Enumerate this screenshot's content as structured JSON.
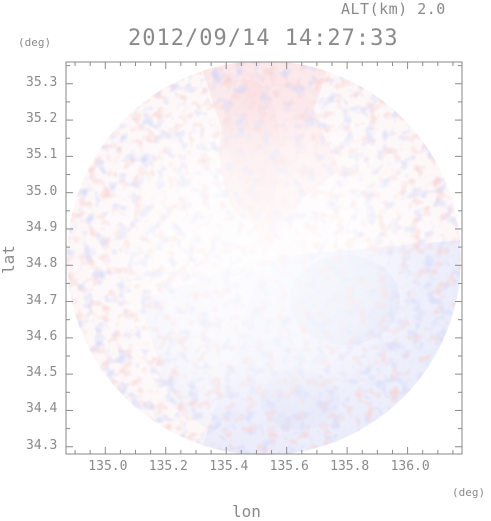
{
  "header": {
    "altitude_label": "ALT(km) 2.0",
    "timestamp": "2012/09/14 14:27:33"
  },
  "axes": {
    "x_unit": "(deg)",
    "y_unit": "(deg)",
    "x_label": "lon",
    "y_label": "lat",
    "x_ticks": [
      "135.0",
      "135.2",
      "135.4",
      "135.6",
      "135.8",
      "136.0"
    ],
    "y_ticks": [
      "35.3",
      "35.2",
      "35.1",
      "35.0",
      "34.9",
      "34.8",
      "34.7",
      "34.6",
      "34.5",
      "34.4",
      "34.3"
    ]
  },
  "map": {
    "type": "radar-ppi",
    "x_range": [
      134.87,
      136.18
    ],
    "y_range": [
      34.28,
      35.36
    ],
    "colors": {
      "positive": "#f2b8b8",
      "negative": "#c0c6f0",
      "background": "#ffffff",
      "axis": "#8a8a8a"
    }
  }
}
